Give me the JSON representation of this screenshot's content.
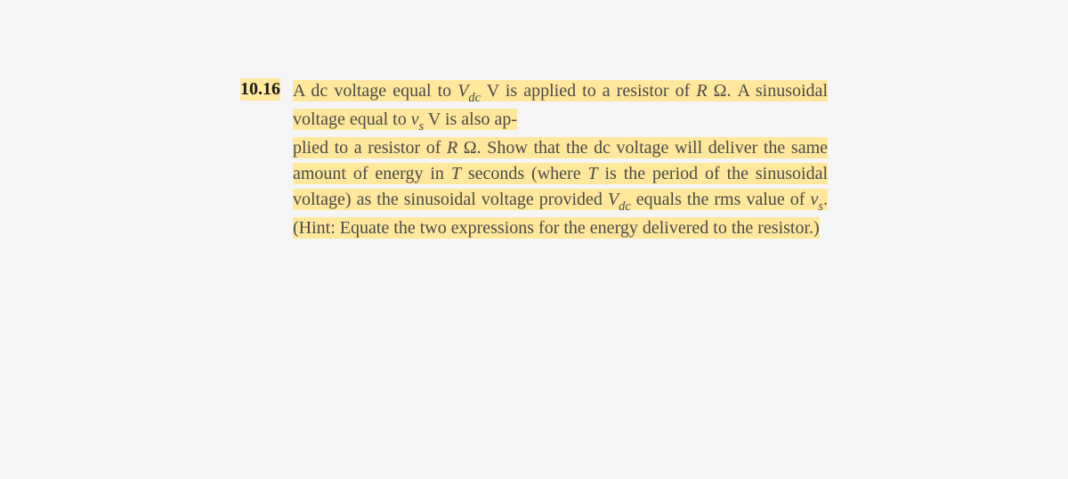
{
  "problem": {
    "number": "10.16",
    "text_parts": {
      "p1": "A dc voltage equal to ",
      "v_label": "V",
      "dc_sub": "dc",
      "p2": " V is applied to a resistor of ",
      "r_label": "R",
      "omega": " Ω. A sinusoidal voltage equal to ",
      "vs_label": "v",
      "s_sub": "s",
      "p3": " V is also ap-",
      "p4": "plied to a resistor of ",
      "r_label2": "R",
      "omega2": " Ω. Show that the dc voltage will deliver the same amount of energy in ",
      "t_label": "T",
      "p5": " seconds (where ",
      "t_label2": "T",
      "p6": " is the period of the sinusoidal voltage) as the sinusoidal voltage provided ",
      "v_label2": "V",
      "dc_sub2": "dc",
      "p7": " equals the rms value of ",
      "vs_label2": "v",
      "s_sub2": "s",
      "p8": ". (Hint: Equate the two expressions for the energy delivered to the resistor.)"
    },
    "highlight_color": "#ffe89c",
    "text_color": "#4a4a4a",
    "background_color": "#f5f5f5",
    "font_size": 20
  }
}
